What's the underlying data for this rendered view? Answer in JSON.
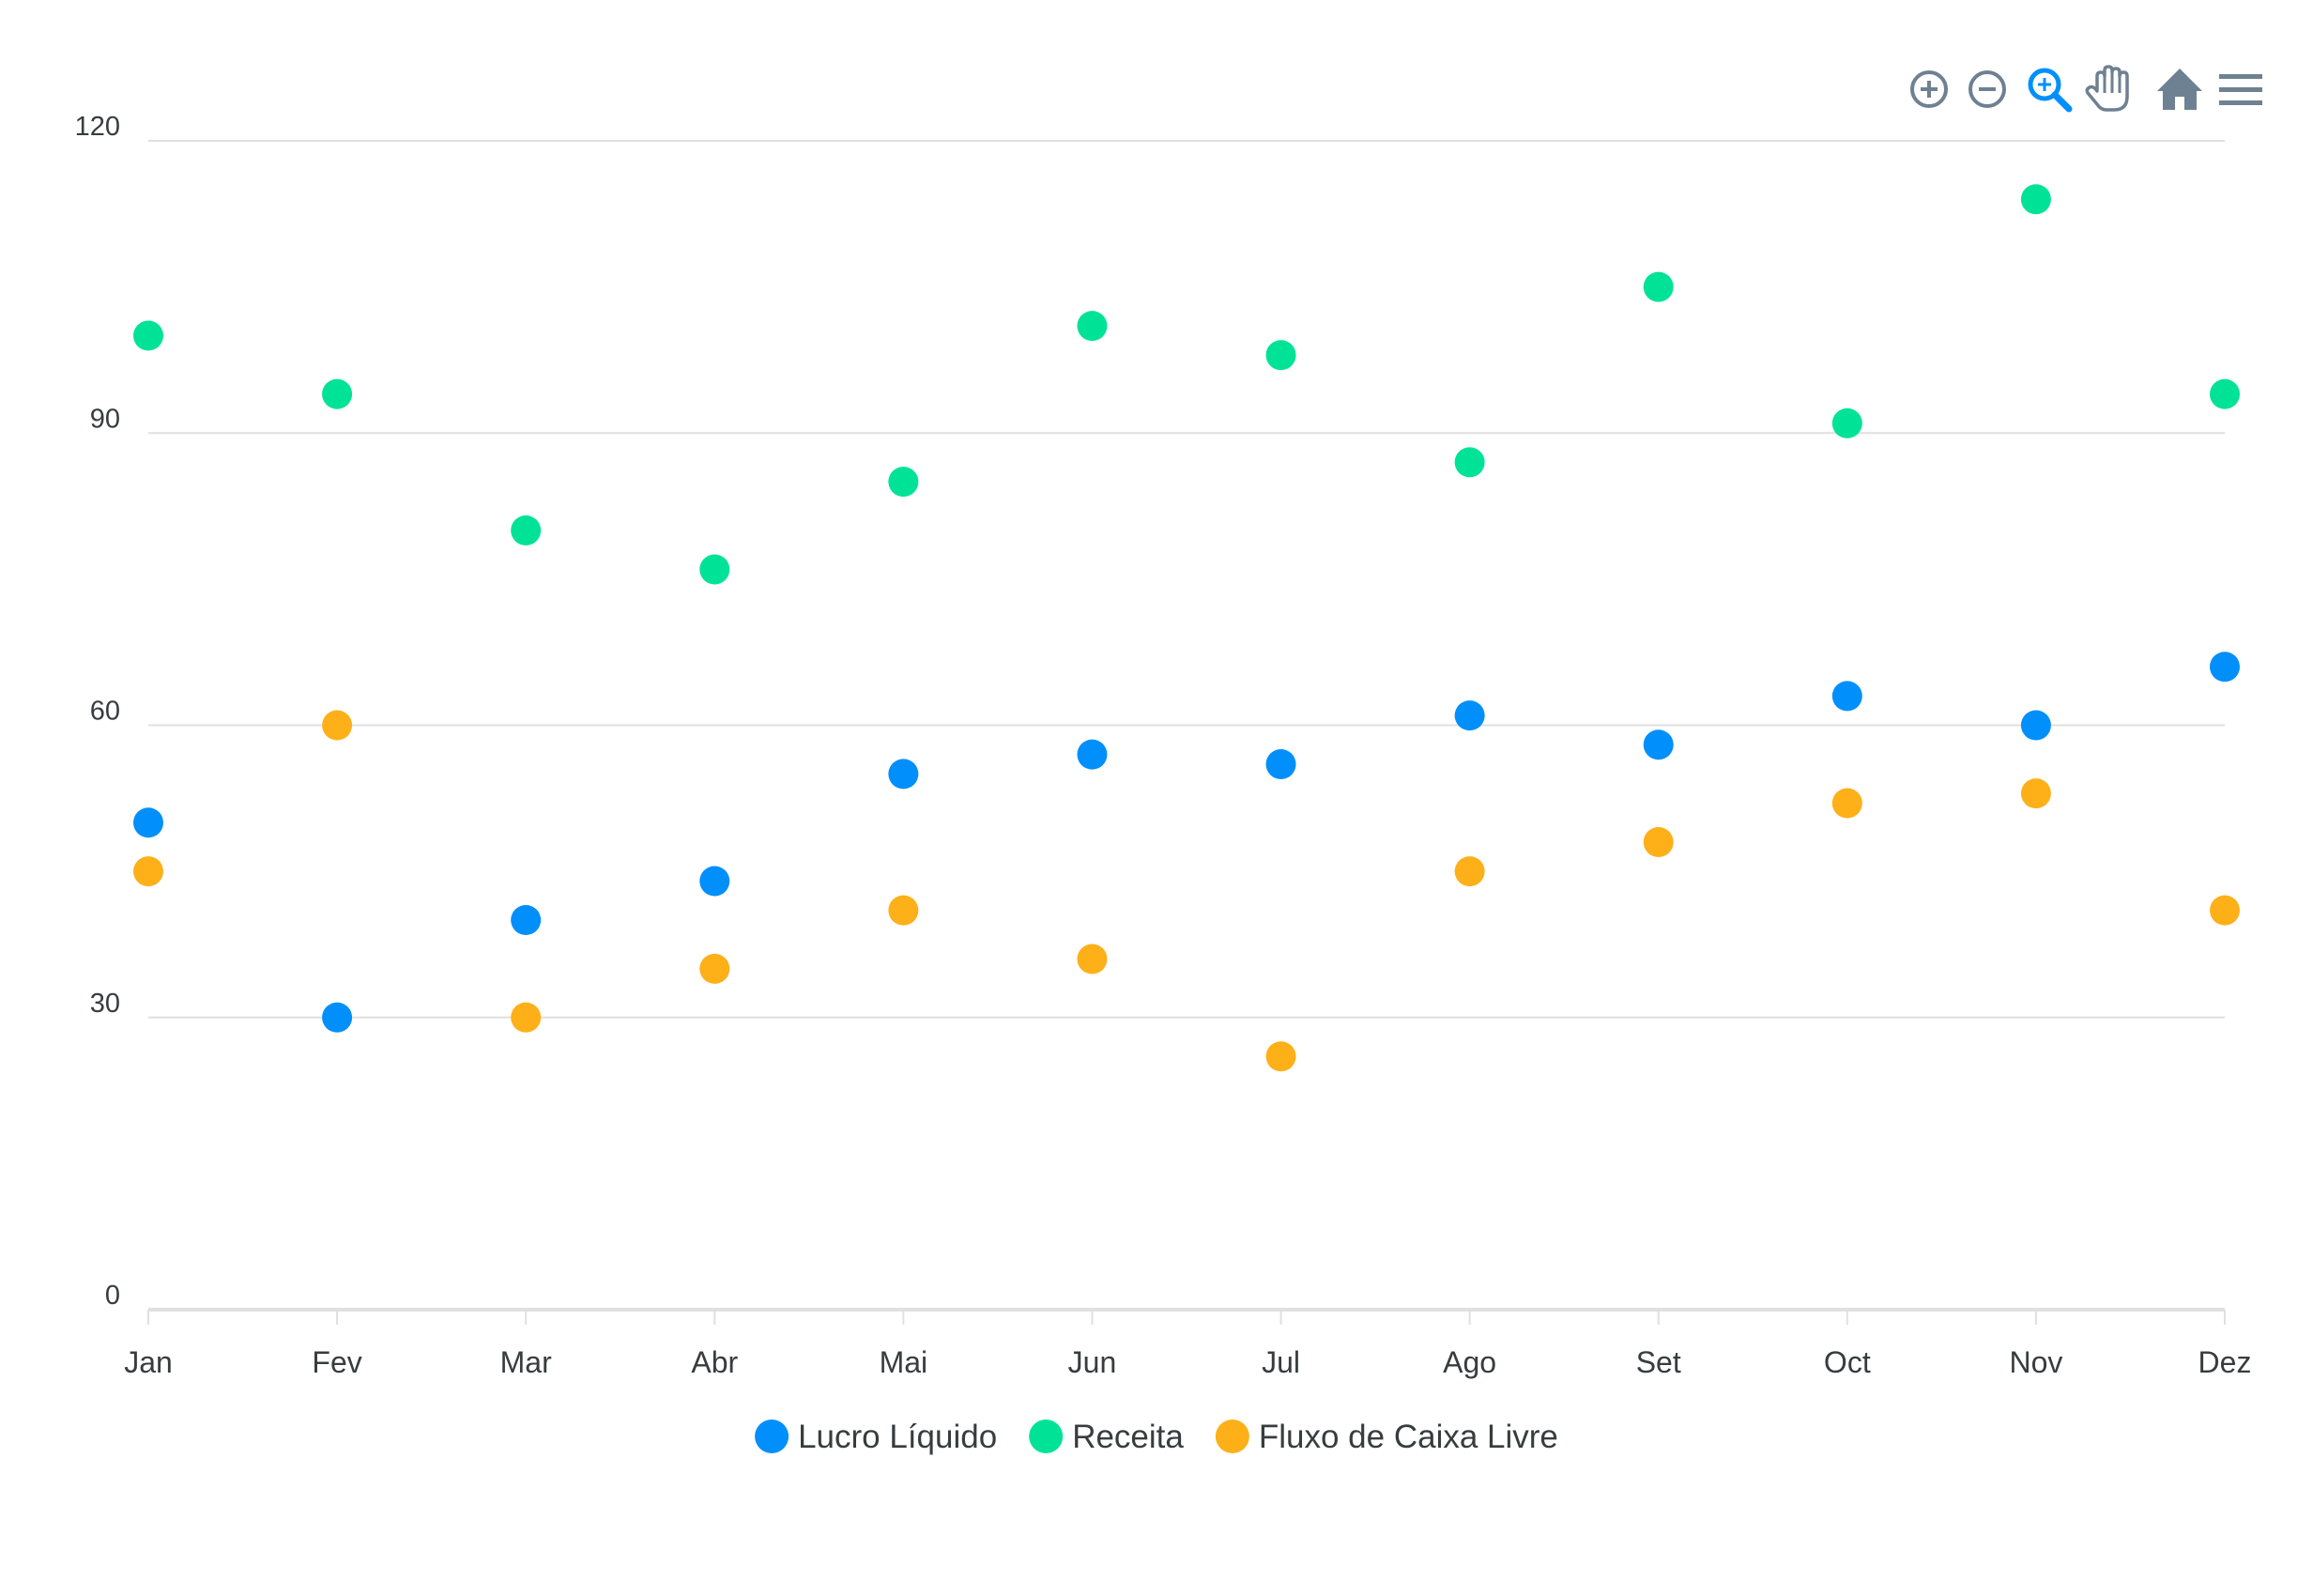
{
  "chart_data": {
    "type": "scatter",
    "categories": [
      "Jan",
      "Fev",
      "Mar",
      "Abr",
      "Mai",
      "Jun",
      "Jul",
      "Ago",
      "Set",
      "Oct",
      "Nov",
      "Dez"
    ],
    "series": [
      {
        "name": "Lucro Líquido",
        "color": "#008ffb",
        "values": [
          50,
          30,
          40,
          44,
          55,
          57,
          56,
          61,
          58,
          63,
          60,
          66
        ]
      },
      {
        "name": "Receita",
        "color": "#00e396",
        "values": [
          100,
          94,
          80,
          76,
          85,
          101,
          98,
          87,
          105,
          91,
          114,
          94
        ]
      },
      {
        "name": "Fluxo de Caixa Livre",
        "color": "#feb019",
        "values": [
          45,
          60,
          30,
          35,
          41,
          36,
          26,
          45,
          48,
          52,
          53,
          41
        ]
      }
    ],
    "yticks": [
      0,
      30,
      60,
      90,
      120
    ],
    "ylim": [
      0,
      120
    ],
    "grid": true,
    "legend_position": "bottom-center"
  },
  "toolbar": {
    "icons": [
      "zoom-in-icon",
      "zoom-out-icon",
      "selection-zoom-icon",
      "pan-icon",
      "reset-home-icon",
      "menu-icon"
    ],
    "active_color": "#008ffb",
    "icon_color": "#6e8192"
  }
}
